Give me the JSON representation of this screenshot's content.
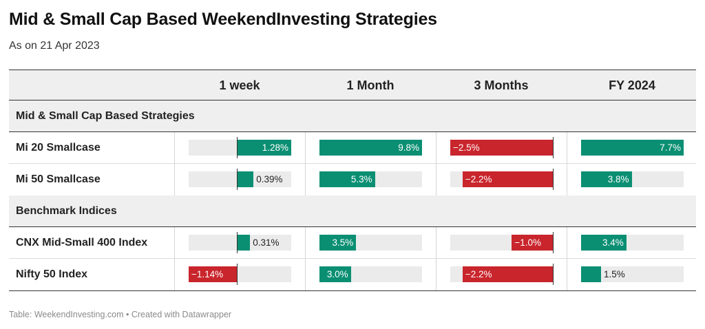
{
  "title": "Mid & Small Cap Based WeekendInvesting Strategies",
  "subtitle": "As on 21 Apr 2023",
  "footer": "Table: WeekendInvesting.com • Created with Datawrapper",
  "colors": {
    "positive": "#0b8f73",
    "negative": "#c9252c",
    "track": "#ebebeb",
    "header_bg": "#efefef"
  },
  "chart_data": {
    "type": "table",
    "columns": [
      "1 week",
      "1 Month",
      "3 Months",
      "FY 2024"
    ],
    "column_ranges": [
      [
        -1.14,
        1.28
      ],
      [
        0,
        9.8
      ],
      [
        -2.5,
        0
      ],
      [
        0,
        7.7
      ]
    ],
    "groups": [
      {
        "label": "Mid & Small Cap Based Strategies",
        "rows": [
          {
            "name": "Mi 20 Smallcase",
            "values": [
              1.28,
              9.8,
              -2.5,
              7.7
            ],
            "labels": [
              "1.28%",
              "9.8%",
              "−2.5%",
              "7.7%"
            ]
          },
          {
            "name": "Mi 50 Smallcase",
            "values": [
              0.39,
              5.3,
              -2.2,
              3.8
            ],
            "labels": [
              "0.39%",
              "5.3%",
              "−2.2%",
              "3.8%"
            ]
          }
        ]
      },
      {
        "label": "Benchmark Indices",
        "rows": [
          {
            "name": "CNX Mid-Small 400 Index",
            "values": [
              0.31,
              3.5,
              -1.0,
              3.4
            ],
            "labels": [
              "0.31%",
              "3.5%",
              "−1.0%",
              "3.4%"
            ]
          },
          {
            "name": "Nifty 50 Index",
            "values": [
              -1.14,
              3.0,
              -2.2,
              1.5
            ],
            "labels": [
              "−1.14%",
              "3.0%",
              "−2.2%",
              "1.5%"
            ]
          }
        ]
      }
    ]
  }
}
